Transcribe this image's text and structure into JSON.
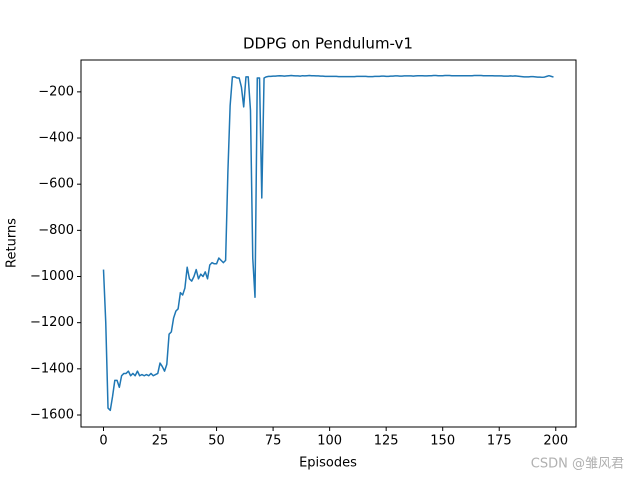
{
  "chart_data": {
    "type": "line",
    "title": "DDPG on Pendulum-v1",
    "xlabel": "Episodes",
    "ylabel": "Returns",
    "watermark": "CSDN @雏风君",
    "x": [
      0,
      1,
      2,
      3,
      4,
      5,
      6,
      7,
      8,
      9,
      10,
      11,
      12,
      13,
      14,
      15,
      16,
      17,
      18,
      19,
      20,
      21,
      22,
      23,
      24,
      25,
      26,
      27,
      28,
      29,
      30,
      31,
      32,
      33,
      34,
      35,
      36,
      37,
      38,
      39,
      40,
      41,
      42,
      43,
      44,
      45,
      46,
      47,
      48,
      49,
      50,
      51,
      52,
      53,
      54,
      55,
      56,
      57,
      58,
      59,
      60,
      61,
      62,
      63,
      64,
      65,
      66,
      67,
      68,
      69,
      70,
      71,
      72,
      73,
      74,
      75,
      76,
      77,
      78,
      79,
      80,
      81,
      82,
      83,
      84,
      85,
      86,
      87,
      88,
      89,
      90,
      91,
      92,
      93,
      94,
      95,
      96,
      97,
      98,
      99,
      100,
      101,
      102,
      103,
      104,
      105,
      106,
      107,
      108,
      109,
      110,
      111,
      112,
      113,
      114,
      115,
      116,
      117,
      118,
      119,
      120,
      121,
      122,
      123,
      124,
      125,
      126,
      127,
      128,
      129,
      130,
      131,
      132,
      133,
      134,
      135,
      136,
      137,
      138,
      139,
      140,
      141,
      142,
      143,
      144,
      145,
      146,
      147,
      148,
      149,
      150,
      151,
      152,
      153,
      154,
      155,
      156,
      157,
      158,
      159,
      160,
      161,
      162,
      163,
      164,
      165,
      166,
      167,
      168,
      169,
      170,
      171,
      172,
      173,
      174,
      175,
      176,
      177,
      178,
      179,
      180,
      181,
      182,
      183,
      184,
      185,
      186,
      187,
      188,
      189,
      190,
      191,
      192,
      193,
      194,
      195,
      196,
      197,
      198,
      199
    ],
    "series": [
      {
        "name": "DDPG",
        "color": "#1f77b4",
        "values": [
          -970,
          -1200,
          -1570,
          -1580,
          -1520,
          -1450,
          -1450,
          -1480,
          -1430,
          -1420,
          -1420,
          -1410,
          -1430,
          -1420,
          -1430,
          -1410,
          -1430,
          -1425,
          -1430,
          -1425,
          -1430,
          -1420,
          -1430,
          -1425,
          -1420,
          -1375,
          -1390,
          -1410,
          -1380,
          -1250,
          -1240,
          -1180,
          -1150,
          -1140,
          -1070,
          -1080,
          -1050,
          -960,
          -1010,
          -1020,
          -1000,
          -970,
          -1010,
          -990,
          -1000,
          -980,
          -1010,
          -950,
          -940,
          -945,
          -945,
          -920,
          -930,
          -940,
          -930,
          -550,
          -260,
          -135,
          -135,
          -140,
          -140,
          -180,
          -265,
          -135,
          -135,
          -280,
          -920,
          -1090,
          -140,
          -140,
          -660,
          -140,
          -135,
          -133,
          -133,
          -132,
          -132,
          -131,
          -130,
          -131,
          -132,
          -131,
          -130,
          -129,
          -130,
          -131,
          -131,
          -132,
          -130,
          -131,
          -130,
          -129,
          -130,
          -130,
          -131,
          -131,
          -132,
          -132,
          -133,
          -133,
          -133,
          -133,
          -133,
          -133,
          -134,
          -134,
          -134,
          -134,
          -134,
          -134,
          -134,
          -134,
          -133,
          -133,
          -133,
          -133,
          -133,
          -134,
          -134,
          -134,
          -133,
          -133,
          -133,
          -132,
          -132,
          -133,
          -133,
          -132,
          -132,
          -131,
          -131,
          -132,
          -132,
          -131,
          -131,
          -131,
          -131,
          -132,
          -131,
          -130,
          -130,
          -130,
          -131,
          -131,
          -130,
          -130,
          -129,
          -129,
          -130,
          -130,
          -130,
          -129,
          -129,
          -129,
          -130,
          -130,
          -130,
          -130,
          -130,
          -130,
          -130,
          -130,
          -130,
          -130,
          -129,
          -129,
          -129,
          -129,
          -130,
          -130,
          -130,
          -130,
          -130,
          -131,
          -131,
          -131,
          -131,
          -132,
          -132,
          -132,
          -131,
          -132,
          -131,
          -132,
          -133,
          -134,
          -135,
          -135,
          -135,
          -134,
          -134,
          -135,
          -136,
          -136,
          -137,
          -136,
          -133,
          -130,
          -133,
          -136
        ]
      }
    ],
    "xlim": [
      -9.95,
      208.95
    ],
    "xticks": [
      0,
      25,
      50,
      75,
      100,
      125,
      150,
      175,
      200
    ],
    "ylim": [
      -1652,
      -62
    ],
    "yticks": [
      {
        "value": -1600,
        "label": "−1600"
      },
      {
        "value": -1400,
        "label": "−1400"
      },
      {
        "value": -1200,
        "label": "−1200"
      },
      {
        "value": -1000,
        "label": "−1000"
      },
      {
        "value": -800,
        "label": "−800"
      },
      {
        "value": -600,
        "label": "−600"
      },
      {
        "value": -400,
        "label": "−400"
      },
      {
        "value": -200,
        "label": "−200"
      }
    ],
    "grid": false
  }
}
